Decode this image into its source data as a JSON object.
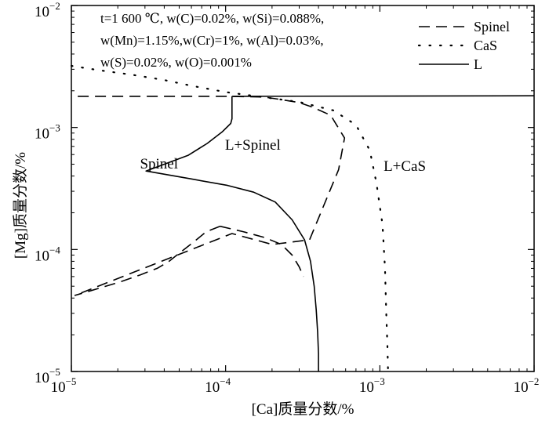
{
  "chart_data": {
    "type": "line",
    "xlabel": "[Ca]质量分数/%",
    "ylabel": "[Mg]质量分数/%",
    "xscale": "log",
    "yscale": "log",
    "xlim": [
      1e-05,
      0.01
    ],
    "ylim": [
      1e-05,
      0.01
    ],
    "x_ticks": [
      {
        "base": "10",
        "exp": "−5",
        "value": 1e-05
      },
      {
        "base": "10",
        "exp": "−4",
        "value": 0.0001
      },
      {
        "base": "10",
        "exp": "−3",
        "value": 0.001
      },
      {
        "base": "10",
        "exp": "−2",
        "value": 0.01
      }
    ],
    "y_ticks": [
      {
        "base": "10",
        "exp": "−5",
        "value": 1e-05
      },
      {
        "base": "10",
        "exp": "−4",
        "value": 0.0001
      },
      {
        "base": "10",
        "exp": "−3",
        "value": 0.001
      },
      {
        "base": "10",
        "exp": "−2",
        "value": 0.01
      }
    ],
    "conditions": [
      "t=1 600 ℃, w(C)=0.02%, w(Si)=0.088%,",
      "w(Mn)=1.15%,w(Cr)=1%, w(Al)=0.03%,",
      "w(S)=0.02%, w(O)=0.001%"
    ],
    "legend_position": "top-right",
    "series": [
      {
        "name": "Spinel",
        "style": "dashed",
        "x": [
          1.1e-05,
          0.0001,
          0.000175,
          0.000225,
          0.0003,
          0.00036,
          0.00048,
          0.00059,
          0.00054,
          0.00035,
          0.0002,
          0.00011,
          1.05e-05
        ],
        "y": [
          0.0018,
          0.0018,
          0.00178,
          0.0017,
          0.0016,
          0.00148,
          0.00126,
          0.00082,
          0.00045,
          0.00012,
          0.00011,
          0.000135,
          4.2e-05
        ]
      },
      {
        "name": "Spinel",
        "style": "dashed",
        "x": [
          9.2e-05,
          7.5e-05,
          6.2e-05,
          5.1e-05,
          4.3e-05,
          3.6e-05,
          2.8e-05,
          2.05e-05,
          1.5e-05,
          1.05e-05
        ],
        "y": [
          0.000155,
          0.00014,
          0.000115,
          9.5e-05,
          8e-05,
          7e-05,
          6.2e-05,
          5.4e-05,
          4.8e-05,
          4.2e-05
        ]
      },
      {
        "name": "Spinel",
        "style": "dashed",
        "x": [
          9.2e-05,
          0.00013,
          0.00018,
          0.00023,
          0.00027,
          0.0003,
          0.00032
        ],
        "y": [
          0.000155,
          0.00014,
          0.000125,
          0.00011,
          9e-05,
          7.2e-05,
          6e-05
        ]
      },
      {
        "name": "CaS",
        "style": "dotted",
        "x": [
          1e-05,
          1.5e-05,
          2.5e-05,
          4e-05,
          6e-05,
          0.0001,
          0.00016,
          0.0003,
          0.0005,
          0.0007,
          0.00086,
          0.00095,
          0.00104,
          0.00108,
          0.0011,
          0.00112,
          0.00113
        ],
        "y": [
          0.0032,
          0.00295,
          0.0027,
          0.00245,
          0.0022,
          0.00195,
          0.0018,
          0.00162,
          0.00138,
          0.00105,
          0.00065,
          0.00035,
          0.00016,
          7e-05,
          3e-05,
          1.6e-05,
          1e-05
        ]
      },
      {
        "name": "L",
        "style": "solid",
        "x": [
          0.00011,
          0.01
        ],
        "y": [
          0.0018,
          0.00182
        ]
      },
      {
        "name": "L",
        "style": "solid",
        "x": [
          0.00011,
          0.00011,
          0.000108,
          9.5e-05,
          7.6e-05,
          5.7e-05,
          3.05e-05,
          5.9e-05,
          0.000103,
          0.000152,
          0.00021,
          0.00027,
          0.000325,
          0.000355,
          0.000375,
          0.000387,
          0.000395,
          0.0004,
          0.0004
        ],
        "y": [
          0.0018,
          0.00118,
          0.00108,
          0.00092,
          0.00074,
          0.00059,
          0.00044,
          0.00038,
          0.000335,
          0.000295,
          0.000245,
          0.000175,
          0.00012,
          8e-05,
          5e-05,
          3.2e-05,
          2.1e-05,
          1.4e-05,
          1e-05
        ]
      }
    ],
    "legend": [
      {
        "label": "Spinel",
        "style": "dashed"
      },
      {
        "label": "CaS",
        "style": "dotted"
      },
      {
        "label": "L",
        "style": "solid"
      }
    ],
    "annotations": [
      {
        "text": "L+Spinel",
        "x": 0.00015,
        "y": 0.00066
      },
      {
        "text": "Spinel",
        "x": 3.7e-05,
        "y": 0.00046
      },
      {
        "text": "L+CaS",
        "x": 0.00145,
        "y": 0.00044
      }
    ]
  }
}
